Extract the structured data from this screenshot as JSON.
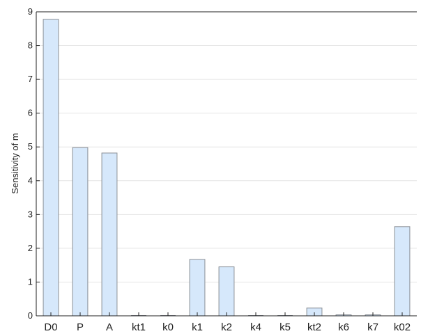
{
  "chart_data": {
    "type": "bar",
    "categories": [
      "D0",
      "P",
      "A",
      "kt1",
      "k0",
      "k1",
      "k2",
      "k4",
      "k5",
      "kt2",
      "k6",
      "k7",
      "k02"
    ],
    "values": [
      8.78,
      4.98,
      4.82,
      0.0,
      0.0,
      1.67,
      1.45,
      0.0,
      0.0,
      0.23,
      0.03,
      0.03,
      2.64
    ],
    "ylabel": "Sensitivity of m",
    "xlabel": "",
    "ylim": [
      0,
      9
    ],
    "yticks": [
      0,
      1,
      2,
      3,
      4,
      5,
      6,
      7,
      8,
      9
    ],
    "grid": true,
    "colors": {
      "bar_fill": "#d6e8fb",
      "bar_edge": "#8a8f96",
      "grid": "#e4e4e4",
      "axis": "#222222"
    }
  }
}
